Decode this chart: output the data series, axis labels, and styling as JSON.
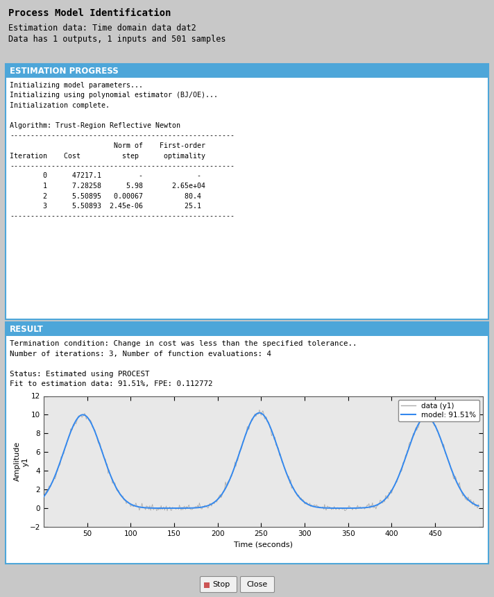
{
  "title_text": "Process Model Identification",
  "subtitle1": "Estimation data: Time domain data dat2",
  "subtitle2": "Data has 1 outputs, 1 inputs and 501 samples",
  "section1_header": "ESTIMATION PROGRESS",
  "progress_lines": [
    "Initializing model parameters...",
    "Initializing using polynomial estimator (BJ/OE)...",
    "Initialization complete.",
    "",
    "Algorithm: Trust-Region Reflective Newton",
    "------------------------------------------------------",
    "                         Norm of    First-order",
    "Iteration    Cost          step      optimality",
    "------------------------------------------------------",
    "        0      47217.1         -             -",
    "        1      7.28258      5.98       2.65e+04",
    "        2      5.50895   0.00067          80.4",
    "        3      5.50893  2.45e-06          25.1",
    "------------------------------------------------------"
  ],
  "section2_header": "RESULT",
  "result_lines": [
    "Termination condition: Change in cost was less than the specified tolerance..",
    "Number of iterations: 3, Number of function evaluations: 4",
    "",
    "Status: Estimated using PROCEST",
    "Fit to estimation data: 91.51%, FPE: 0.112772"
  ],
  "header_bg": "#4da6d9",
  "header_text_color": "#ffffff",
  "outer_bg": "#c8c8c8",
  "box_bg": "#ffffff",
  "border_color": "#4da6d9",
  "plot_area_bg": "#e8e8e8",
  "data_color": "#aaaaaa",
  "model_color": "#3388ee",
  "legend_data_label": "data (y1)",
  "legend_model_label": "model: 91.51%",
  "xlabel": "Time (seconds)",
  "ylabel": "Amplitude\ny1",
  "ylim": [
    -2,
    12
  ],
  "yticks": [
    -2,
    0,
    2,
    4,
    6,
    8,
    10,
    12
  ],
  "xticks": [
    50,
    100,
    150,
    200,
    250,
    300,
    350,
    400,
    450
  ],
  "xlim": [
    0,
    505
  ],
  "btn_stop": "Stop",
  "btn_close": "Close"
}
